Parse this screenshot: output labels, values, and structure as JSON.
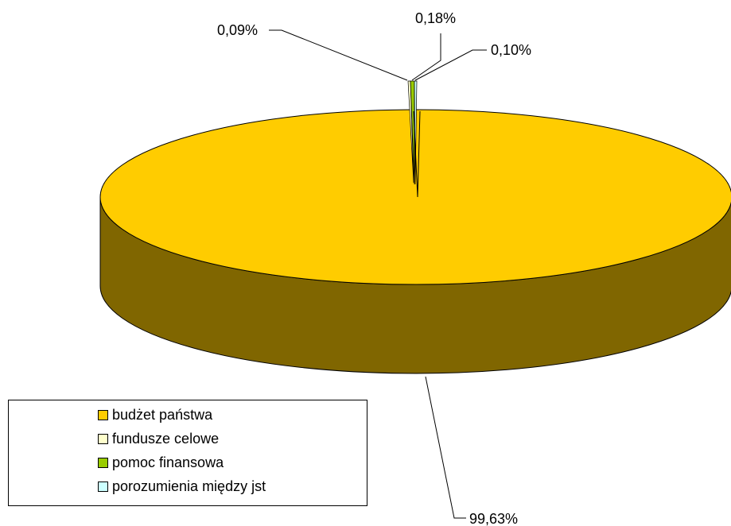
{
  "chart_data": {
    "type": "pie",
    "title": "",
    "categories": [
      "budżet państwa",
      "fundusze celowe",
      "pomoc finansowa",
      "porozumienia między jst"
    ],
    "values": [
      99.63,
      0.09,
      0.18,
      0.1
    ],
    "data_labels": [
      "99,63%",
      "0,09%",
      "0,18%",
      "0,10%"
    ],
    "colors": [
      "#FFCC00",
      "#FFFFCC",
      "#99CC00",
      "#CCFFFF"
    ],
    "side_color": "#806600",
    "style": "3d",
    "legend_position": "bottom-left"
  }
}
